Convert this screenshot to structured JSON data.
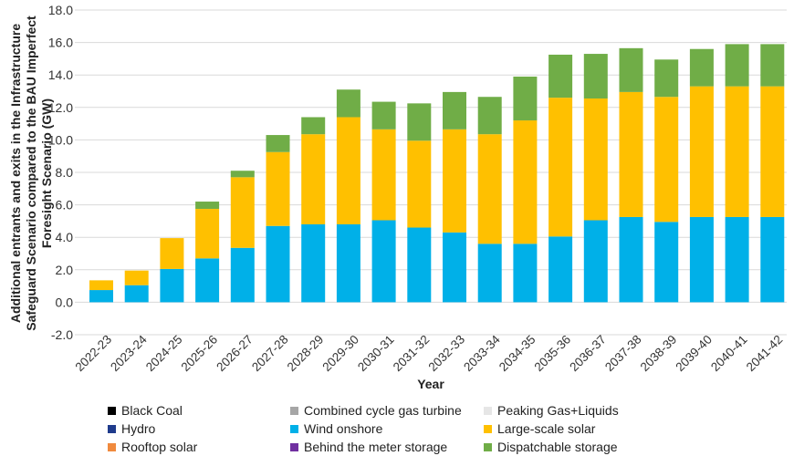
{
  "chart_data": {
    "type": "bar",
    "stacked": true,
    "ylabel": "Additional entrants and exits in the Infrastructure Safeguard Scenario compared to the BAU Imperfect Foresight Scenario (GW)",
    "ylabel_lines": [
      "Additional entrants and exits in the Infrastructure",
      "Safeguard Scenario compared to the BAU Imperfect",
      "Foresight Scenario (GW)"
    ],
    "xlabel": "Year",
    "ylim": [
      -2.0,
      18.0
    ],
    "yticks": [
      "-2.0",
      "0.0",
      "2.0",
      "4.0",
      "6.0",
      "8.0",
      "10.0",
      "12.0",
      "14.0",
      "16.0",
      "18.0"
    ],
    "ytick_values": [
      -2,
      0,
      2,
      4,
      6,
      8,
      10,
      12,
      14,
      16,
      18
    ],
    "grid": true,
    "legend_position": "bottom",
    "categories": [
      "2022-23",
      "2023-24",
      "2024-25",
      "2025-26",
      "2026-27",
      "2027-28",
      "2028-29",
      "2029-30",
      "2030-31",
      "2031-32",
      "2032-33",
      "2033-34",
      "2034-35",
      "2035-36",
      "2036-37",
      "2037-38",
      "2038-39",
      "2039-40",
      "2040-41",
      "2041-42"
    ],
    "series": [
      {
        "name": "Black Coal",
        "color": "#000000",
        "values": [
          0,
          0,
          0,
          0,
          0,
          0,
          0,
          0,
          0,
          0,
          0,
          0,
          0,
          0,
          0,
          0,
          0,
          0,
          0,
          0
        ]
      },
      {
        "name": "Combined cycle gas turbine",
        "color": "#a6a6a6",
        "values": [
          0,
          0,
          0,
          0,
          0,
          0,
          0,
          0,
          0,
          0,
          0,
          0,
          0,
          0,
          0,
          0,
          0,
          0,
          0,
          0
        ]
      },
      {
        "name": "Peaking Gas+Liquids",
        "color": "#e6e6e6",
        "values": [
          0,
          0,
          0,
          0,
          0,
          0,
          0,
          0,
          0,
          0,
          0,
          0,
          0,
          0,
          0,
          0,
          0,
          0,
          0,
          0
        ]
      },
      {
        "name": "Hydro",
        "color": "#1f3b8c",
        "values": [
          0,
          0,
          0,
          0,
          0,
          0,
          0,
          0,
          0,
          0,
          0,
          0,
          0,
          0,
          0,
          0,
          0,
          0,
          0,
          0
        ]
      },
      {
        "name": "Wind onshore",
        "color": "#00b0e8",
        "values": [
          0.75,
          1.05,
          2.05,
          2.7,
          3.35,
          4.7,
          4.8,
          4.8,
          5.05,
          4.6,
          4.3,
          3.6,
          3.6,
          4.05,
          5.05,
          5.25,
          4.95,
          5.25,
          5.25,
          5.25
        ]
      },
      {
        "name": "Large-scale solar",
        "color": "#ffc000",
        "values": [
          0.6,
          0.9,
          1.9,
          3.05,
          4.35,
          4.55,
          5.55,
          6.6,
          5.6,
          5.35,
          6.35,
          6.75,
          7.6,
          8.55,
          7.5,
          7.7,
          7.7,
          8.05,
          8.05,
          8.05
        ]
      },
      {
        "name": "Rooftop solar",
        "color": "#f08a3e",
        "values": [
          0,
          0,
          0,
          0,
          0,
          0,
          0,
          0,
          0,
          0,
          0,
          0,
          0,
          0,
          0,
          0,
          0,
          0,
          0,
          0
        ]
      },
      {
        "name": "Behind the meter storage",
        "color": "#7030a0",
        "values": [
          0,
          0,
          0,
          0,
          0,
          0,
          0,
          0,
          0,
          0,
          0,
          0,
          0,
          0,
          0,
          0,
          0,
          0,
          0,
          0
        ]
      },
      {
        "name": "Dispatchable storage",
        "color": "#70ad47",
        "values": [
          0,
          0,
          0,
          0.45,
          0.4,
          1.05,
          1.05,
          1.7,
          1.7,
          2.3,
          2.3,
          2.3,
          2.7,
          2.65,
          2.75,
          2.7,
          2.3,
          2.3,
          2.6,
          2.6
        ]
      }
    ]
  }
}
